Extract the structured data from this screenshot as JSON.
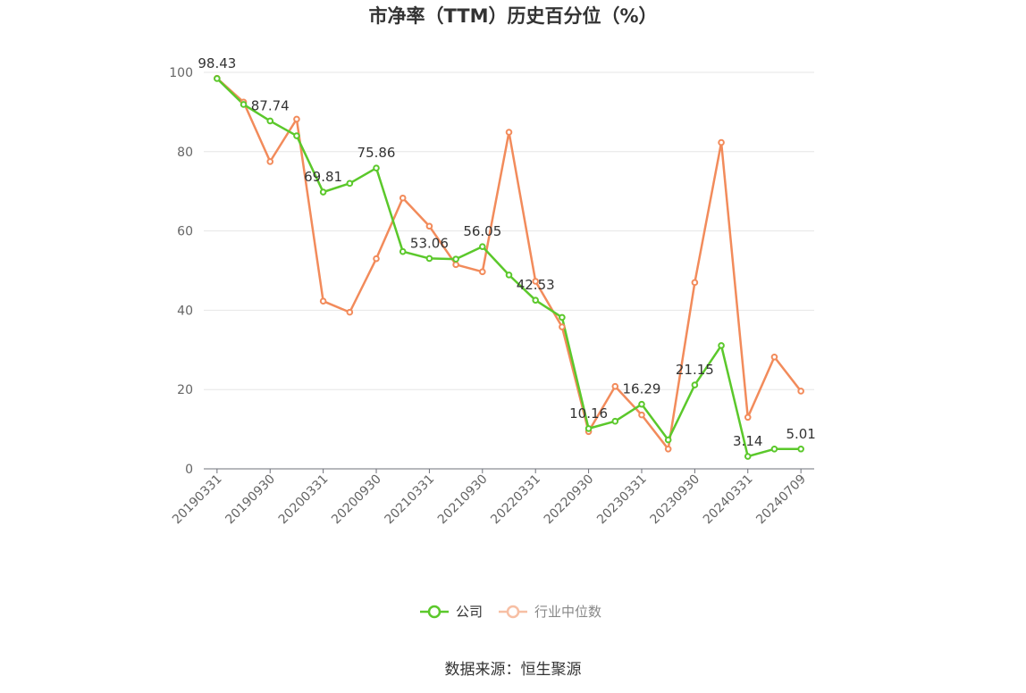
{
  "chart_data": {
    "type": "line",
    "title": "市净率（TTM）历史百分位（%）",
    "source": "数据来源：恒生聚源",
    "ylim": [
      0,
      100
    ],
    "yticks": [
      0,
      20,
      40,
      60,
      80,
      100
    ],
    "x_labels": [
      "20190331",
      "20190930",
      "20200331",
      "20200930",
      "20210331",
      "20210930",
      "20220331",
      "20220930",
      "20230331",
      "20230930",
      "20240331",
      "20240709"
    ],
    "grid": true,
    "legend_position": "bottom",
    "series": [
      {
        "name": "公司",
        "color": "#5bc82b",
        "values": [
          98.43,
          91.9,
          87.74,
          84.0,
          69.81,
          72.0,
          75.86,
          54.8,
          53.06,
          52.9,
          56.05,
          48.9,
          42.53,
          38.2,
          10.16,
          12.0,
          16.29,
          7.3,
          21.15,
          31.1,
          3.14,
          5.0,
          5.01
        ]
      },
      {
        "name": "行业中位数",
        "color": "#f28b5b",
        "values": [
          98.5,
          92.5,
          77.5,
          88.2,
          42.3,
          39.5,
          53.0,
          68.3,
          61.2,
          51.5,
          49.7,
          84.9,
          47.3,
          35.8,
          9.4,
          20.8,
          13.6,
          5.0,
          47.0,
          82.3,
          13.0,
          28.2,
          19.6
        ]
      }
    ],
    "data_labels": [
      {
        "series": 0,
        "index": 0,
        "text": "98.43"
      },
      {
        "series": 0,
        "index": 2,
        "text": "87.74"
      },
      {
        "series": 0,
        "index": 4,
        "text": "69.81"
      },
      {
        "series": 0,
        "index": 6,
        "text": "75.86"
      },
      {
        "series": 0,
        "index": 8,
        "text": "53.06"
      },
      {
        "series": 0,
        "index": 10,
        "text": "56.05"
      },
      {
        "series": 0,
        "index": 12,
        "text": "42.53"
      },
      {
        "series": 0,
        "index": 14,
        "text": "10.16"
      },
      {
        "series": 0,
        "index": 16,
        "text": "16.29"
      },
      {
        "series": 0,
        "index": 18,
        "text": "21.15"
      },
      {
        "series": 0,
        "index": 20,
        "text": "3.14"
      },
      {
        "series": 0,
        "index": 22,
        "text": "5.01"
      }
    ]
  }
}
